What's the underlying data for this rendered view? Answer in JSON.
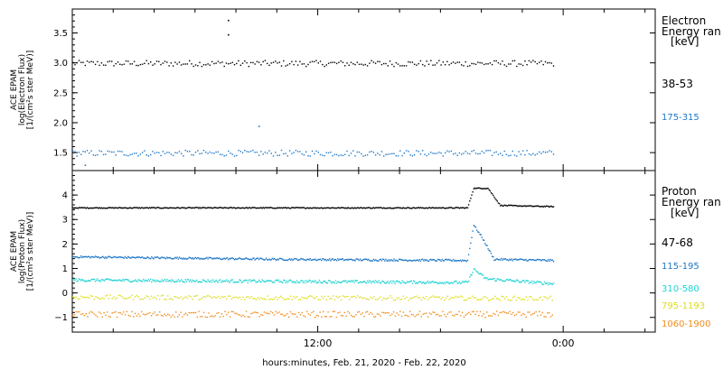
{
  "xlabel": "hours:minutes, Feb. 21, 2020 - Feb. 22, 2020",
  "colors": {
    "axis": "#000000",
    "black": "#000000",
    "blue": "#1f78c8",
    "cyan": "#22d3d3",
    "yellow": "#dcdc1e",
    "orange": "#f08c1e"
  },
  "chart_data": [
    {
      "type": "scatter",
      "panel": "electron",
      "ylabel": [
        "ACE EPAM",
        "log(Electron Flux)",
        "[1/(cm²s ster MeV)]"
      ],
      "ylim": [
        1.2,
        3.9
      ],
      "yticks": [
        1.5,
        2.0,
        2.5,
        3.0,
        3.5
      ],
      "ytick_labels": [
        "1.5",
        "2.0",
        "2.5",
        "3.0",
        "3.5"
      ],
      "legend_title": [
        "Electron",
        "Energy ran",
        "[keV]"
      ],
      "series": [
        {
          "name": "38-53",
          "color": "#000000",
          "x_start": 0,
          "x_end": 23.5,
          "step": 0.1,
          "noise": 0.05,
          "segments": [
            [
              0,
              3.0
            ],
            [
              23.5,
              3.0
            ]
          ],
          "outliers": [
            [
              7.6,
              3.72
            ],
            [
              7.6,
              3.48
            ]
          ]
        },
        {
          "name": "175-315",
          "color": "#1f78c8",
          "x_start": 0,
          "x_end": 23.5,
          "step": 0.1,
          "noise": 0.05,
          "segments": [
            [
              0,
              1.5
            ],
            [
              23.5,
              1.5
            ]
          ],
          "outliers": [
            [
              9.1,
              1.95
            ],
            [
              0.6,
              1.3
            ]
          ]
        }
      ]
    },
    {
      "type": "scatter",
      "panel": "proton",
      "ylabel": [
        "ACE EPAM",
        "log(Proton Flux)",
        "[1/(cm²s ster MeV)]"
      ],
      "ylim": [
        -1.6,
        5.0
      ],
      "yticks": [
        -1,
        0,
        1,
        2,
        3,
        4
      ],
      "ytick_labels": [
        "−1",
        "0",
        "1",
        "2",
        "3",
        "4"
      ],
      "legend_title": [
        "Proton",
        "Energy ran",
        "[keV]"
      ],
      "series": [
        {
          "name": "47-68",
          "color": "#000000",
          "x_start": 0,
          "x_end": 23.5,
          "step": 0.05,
          "noise": 0.02,
          "segments": [
            [
              0,
              3.5
            ],
            [
              19.3,
              3.5
            ],
            [
              19.6,
              4.3
            ],
            [
              20.3,
              4.3
            ],
            [
              20.9,
              3.6
            ],
            [
              23.5,
              3.55
            ]
          ],
          "outliers": []
        },
        {
          "name": "115-195",
          "color": "#1f78c8",
          "x_start": 0,
          "x_end": 23.5,
          "step": 0.05,
          "noise": 0.04,
          "segments": [
            [
              0,
              1.5
            ],
            [
              10,
              1.4
            ],
            [
              19.3,
              1.35
            ],
            [
              19.6,
              2.8
            ],
            [
              20.0,
              2.3
            ],
            [
              20.6,
              1.4
            ],
            [
              23.5,
              1.35
            ]
          ],
          "outliers": []
        },
        {
          "name": "310-580",
          "color": "#22d3d3",
          "x_start": 0,
          "x_end": 23.5,
          "step": 0.05,
          "noise": 0.06,
          "segments": [
            [
              0,
              0.55
            ],
            [
              19.3,
              0.45
            ],
            [
              19.6,
              1.0
            ],
            [
              20.2,
              0.6
            ],
            [
              23.5,
              0.4
            ]
          ],
          "outliers": []
        },
        {
          "name": "795-1193",
          "color": "#dcdc1e",
          "x_start": 0,
          "x_end": 23.5,
          "step": 0.08,
          "noise": 0.09,
          "segments": [
            [
              0,
              -0.15
            ],
            [
              23.5,
              -0.2
            ]
          ],
          "outliers": []
        },
        {
          "name": "1060-1900",
          "color": "#f08c1e",
          "x_start": 0,
          "x_end": 23.5,
          "step": 0.08,
          "noise": 0.12,
          "segments": [
            [
              0,
              -0.85
            ],
            [
              23.5,
              -0.85
            ]
          ],
          "outliers": []
        }
      ]
    }
  ],
  "x_axis": {
    "range_hours": [
      0,
      28.5
    ],
    "major_ticks": [
      12,
      24
    ],
    "major_labels": [
      "12:00",
      "0:00"
    ],
    "minor_tick_step": 2
  }
}
